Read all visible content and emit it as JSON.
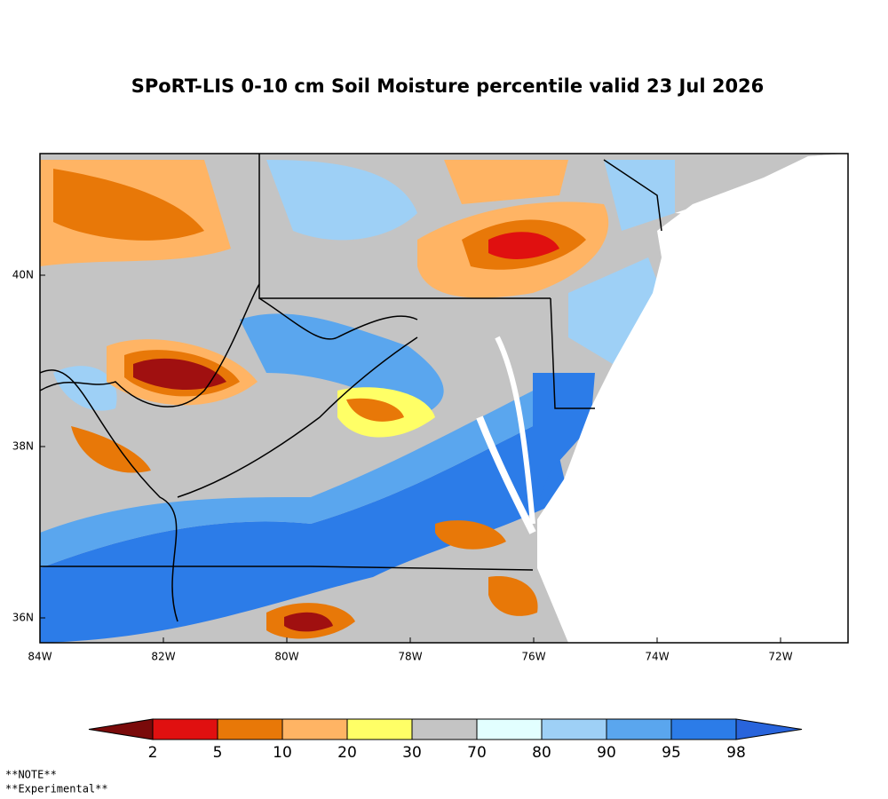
{
  "title": "SPoRT-LIS 0-10 cm Soil Moisture percentile valid 23 Jul 2026",
  "map": {
    "lon_labels": [
      "84W",
      "82W",
      "80W",
      "78W",
      "76W",
      "74W",
      "72W"
    ],
    "lat_labels": [
      "36N",
      "38N",
      "40N"
    ]
  },
  "colorbar": {
    "labels": [
      2,
      5,
      10,
      20,
      30,
      70,
      80,
      90,
      95,
      98
    ],
    "colors": [
      "#7a0a0a",
      "#e01010",
      "#e87808",
      "#ffb464",
      "#ffff66",
      "#c4c4c4",
      "#e2ffff",
      "#9ed0f6",
      "#5aa6ee",
      "#2c7ce8",
      "#2864dc"
    ]
  },
  "notes": [
    "**NOTE**",
    "**Experimental**"
  ]
}
